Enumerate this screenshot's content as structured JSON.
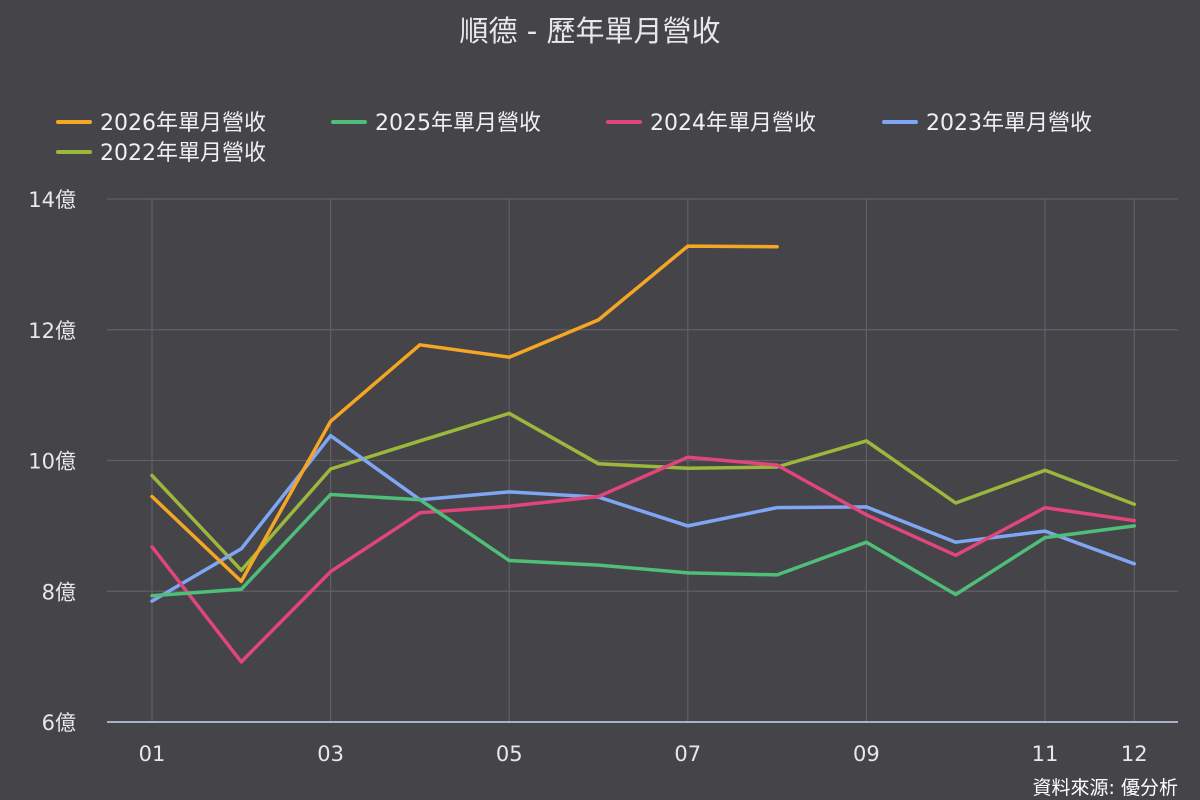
{
  "chart_data": {
    "type": "line",
    "title": "順德 - 歷年單月營收",
    "source": "資料來源: 優分析",
    "x": [
      "01",
      "02",
      "03",
      "04",
      "05",
      "06",
      "07",
      "08",
      "09",
      "10",
      "11",
      "12"
    ],
    "x_tick_labels": [
      "01",
      "03",
      "05",
      "07",
      "09",
      "11",
      "12"
    ],
    "ylim": [
      6,
      14
    ],
    "y_ticks": [
      6,
      8,
      10,
      12,
      14
    ],
    "y_tick_labels": [
      "6億",
      "8億",
      "10億",
      "12億",
      "14億"
    ],
    "grid": true,
    "legend_position": "top",
    "series": [
      {
        "name": "2026年單月營收",
        "color": "#f5a623",
        "values": [
          9.45,
          8.15,
          10.6,
          11.77,
          11.58,
          12.15,
          13.28,
          13.27,
          null,
          null,
          null,
          null
        ]
      },
      {
        "name": "2025年單月營收",
        "color": "#4fbe78",
        "values": [
          7.93,
          8.03,
          9.48,
          9.4,
          8.47,
          8.4,
          8.28,
          8.25,
          8.75,
          7.95,
          8.82,
          9.0
        ]
      },
      {
        "name": "2024年單月營收",
        "color": "#e0457b",
        "values": [
          8.68,
          6.92,
          8.3,
          9.2,
          9.3,
          9.45,
          10.05,
          9.93,
          9.17,
          8.55,
          9.28,
          9.08
        ]
      },
      {
        "name": "2023年單月營收",
        "color": "#7ea6f4",
        "values": [
          7.85,
          8.65,
          10.38,
          9.4,
          9.52,
          9.44,
          9.0,
          9.28,
          9.29,
          8.75,
          8.92,
          8.42
        ]
      },
      {
        "name": "2022年單月營收",
        "color": "#9cb83c",
        "values": [
          9.77,
          8.32,
          9.87,
          10.3,
          10.72,
          9.95,
          9.88,
          9.9,
          10.3,
          9.35,
          9.85,
          9.33
        ]
      }
    ]
  }
}
